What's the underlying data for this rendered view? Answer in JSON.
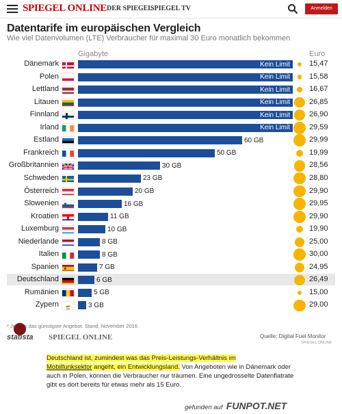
{
  "header": {
    "logo": "SPIEGEL ONLINE",
    "sub_links": [
      "DER SPIEGEL",
      "SPIEGEL TV"
    ],
    "login_label": "Anmelden"
  },
  "chart_data": {
    "type": "bar",
    "title": "Datentarife im europäischen Vergleich",
    "subtitle": "Wie viel Datenvolumen (LTE) Verbraucher für maximal 30 Euro monatlich bekommen",
    "left_header": "Gigabyte",
    "right_header": "Euro",
    "bar_color": "#1c4e9a",
    "dot_color": "#f7b500",
    "unlimited_label": "Kein Limit",
    "categories": [
      "Dänemark",
      "Polen",
      "Lettland",
      "Litauen",
      "Finnland",
      "Irland",
      "Estland",
      "Frankreich",
      "Großbritannien",
      "Schweden",
      "Österreich",
      "Slowenien",
      "Kroatien",
      "Luxemburg",
      "Niederlande",
      "Italien",
      "Spanien",
      "Deutschland",
      "Rumänien",
      "Zypern"
    ],
    "gigabyte": [
      null,
      null,
      null,
      null,
      null,
      null,
      60,
      50,
      30,
      23,
      20,
      16,
      11,
      10,
      8,
      8,
      7,
      6,
      5,
      3
    ],
    "gigabyte_labels": [
      "Kein Limit",
      "Kein Limit",
      "Kein Limit",
      "Kein Limit",
      "Kein Limit",
      "Kein Limit",
      "60 GB",
      "50 GB",
      "30 GB",
      "23 GB",
      "20 GB",
      "16 GB",
      "11 GB",
      "10 GB",
      "8 GB",
      "8 GB",
      "7 GB",
      "6 GB",
      "5 GB",
      "3 GB"
    ],
    "euro": [
      15.47,
      15.58,
      16.67,
      26.85,
      26.9,
      29.59,
      29.99,
      19.99,
      28.56,
      28.8,
      29.9,
      29.95,
      29.9,
      19.9,
      25.0,
      30.0,
      24.95,
      26.49,
      15.0,
      29.0
    ],
    "euro_labels": [
      "15,47",
      "15,58",
      "16,67",
      "26,85",
      "26,90",
      "29,59",
      "29,99",
      "19,99",
      "28,56",
      "28,80",
      "29,90",
      "29,95",
      "29,90",
      "19,90",
      "25,00",
      "30,00",
      "24,95",
      "26,49",
      "15,00",
      "29,00"
    ],
    "highlight": "Deutschland",
    "highlight_color": "#e8e8e8",
    "flags": [
      "denmark-flag",
      "poland-flag",
      "latvia-flag",
      "lithuania-flag",
      "finland-flag",
      "ireland-flag",
      "estonia-flag",
      "france-flag",
      "uk-flag",
      "sweden-flag",
      "austria-flag",
      "slovenia-flag",
      "croatia-flag",
      "luxembourg-flag",
      "netherlands-flag",
      "italy-flag",
      "spain-flag",
      "germany-flag",
      "romania-flag",
      "cyprus-flag"
    ]
  },
  "footer": {
    "footnote": "* Jeweils das günstigste Angebot. Stand: November 2016",
    "statista": "statista",
    "spiegel": "SPIEGEL ONLINE",
    "source": "Quelle: Digital Fuel Monitor",
    "source_sub": "SPIEGEL ONLINE"
  },
  "article": {
    "highlight_1": "Deutschland ist, zumindest was das Preis-Leistungs-Verhältnis im",
    "highlight_2a": "Mobilfunksektor",
    "highlight_2b": " angeht, ein Entwicklungsland.",
    "rest": " Von Angeboten wie in Dänemark oder auch in Polen, können die Verbraucher nur träumen. Eine ungedrosselte Datenflatrate gibt es dort bereits für etwas mehr als 15 Euro."
  },
  "watermark": {
    "prefix": "gefunden auf",
    "brand": "FUNPOT.NET"
  }
}
